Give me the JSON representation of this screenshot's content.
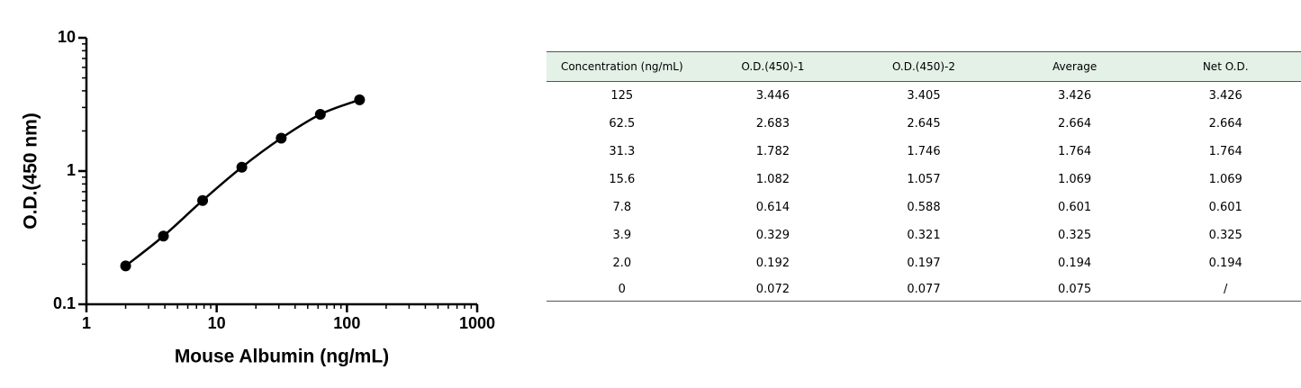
{
  "chart_data": {
    "type": "line",
    "xlabel": "Mouse Albumin  (ng/mL)",
    "ylabel": "O.D.(450 nm)",
    "x": [
      2.0,
      3.9,
      7.8,
      15.6,
      31.3,
      62.5,
      125
    ],
    "values": [
      0.194,
      0.325,
      0.601,
      1.069,
      1.764,
      2.664,
      3.426
    ],
    "color": "#000000",
    "markers": true,
    "xscale": "log",
    "yscale": "log",
    "xlim": [
      1,
      1000
    ],
    "ylim": [
      0.1,
      10
    ],
    "xticks": [
      1,
      10,
      100,
      1000
    ],
    "yticks": [
      0.1,
      1,
      10
    ],
    "xminorticks": [
      2,
      3,
      4,
      5,
      6,
      7,
      8,
      9,
      20,
      30,
      40,
      50,
      60,
      70,
      80,
      90,
      200,
      300,
      400,
      500,
      600,
      700,
      800,
      900
    ],
    "yminorticks": [
      0.2,
      0.3,
      0.4,
      0.5,
      0.6,
      0.7,
      0.8,
      0.9,
      2,
      3,
      4,
      5,
      6,
      7,
      8,
      9
    ]
  },
  "table": {
    "header": [
      "Concentration (ng/mL)",
      "O.D.(450)-1",
      "O.D.(450)-2",
      "Average",
      "Net O.D."
    ],
    "rows": [
      [
        "125",
        "3.446",
        "3.405",
        "3.426",
        "3.426"
      ],
      [
        "62.5",
        "2.683",
        "2.645",
        "2.664",
        "2.664"
      ],
      [
        "31.3",
        "1.782",
        "1.746",
        "1.764",
        "1.764"
      ],
      [
        "15.6",
        "1.082",
        "1.057",
        "1.069",
        "1.069"
      ],
      [
        "7.8",
        "0.614",
        "0.588",
        "0.601",
        "0.601"
      ],
      [
        "3.9",
        "0.329",
        "0.321",
        "0.325",
        "0.325"
      ],
      [
        "2.0",
        "0.192",
        "0.197",
        "0.194",
        "0.194"
      ],
      [
        "0",
        "0.072",
        "0.077",
        "0.075",
        "/"
      ]
    ]
  }
}
